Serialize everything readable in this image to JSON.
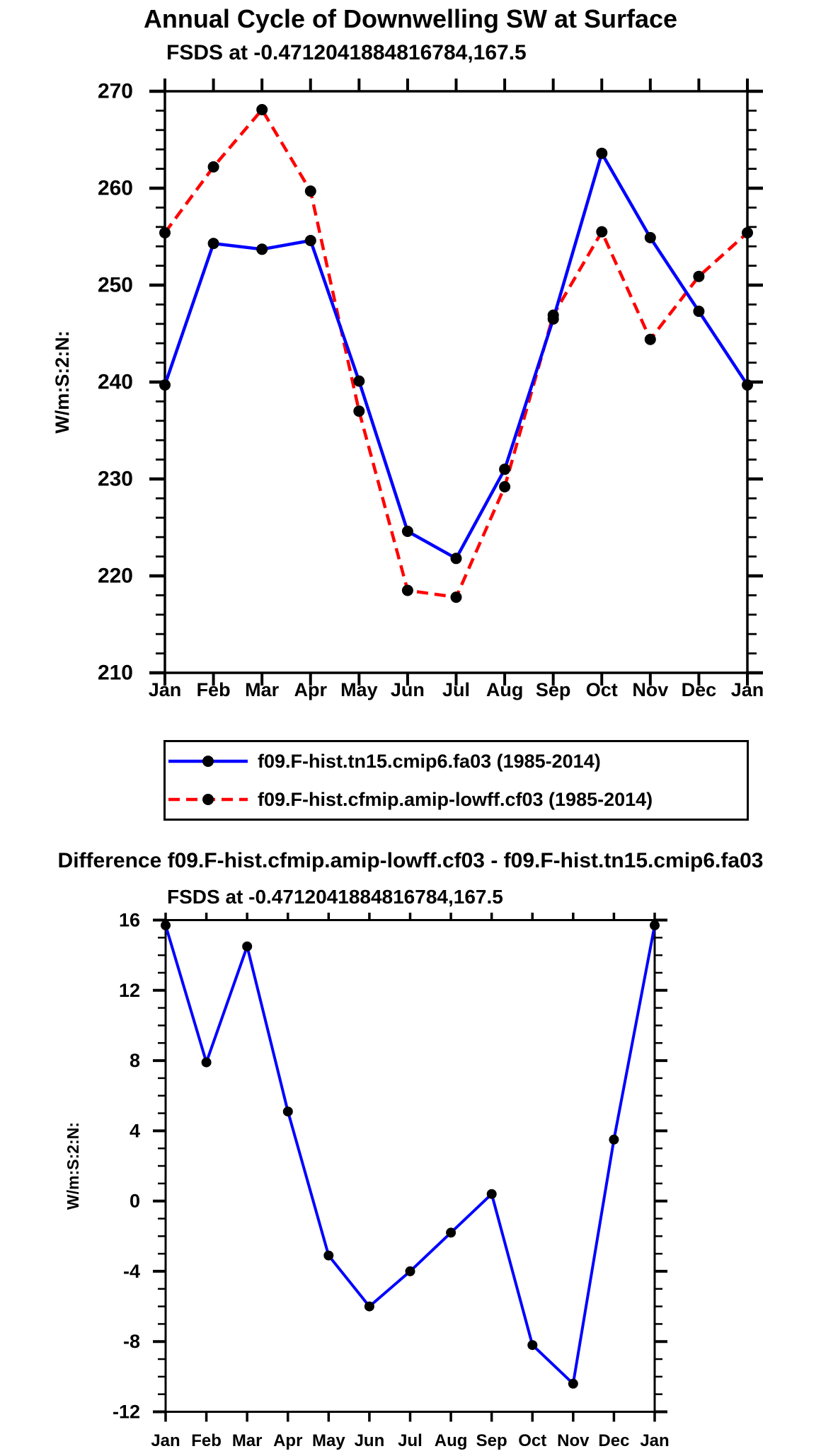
{
  "page": {
    "background": "#ffffff",
    "text_color": "#000000"
  },
  "chart_data": [
    {
      "id": "top",
      "type": "line",
      "title": "Annual Cycle of Downwelling SW at Surface",
      "subtitle": "FSDS at -0.4712041884816784,167.5",
      "ylabel": "W/m:S:2:N:",
      "xlabel": "",
      "categories": [
        "Jan",
        "Feb",
        "Mar",
        "Apr",
        "May",
        "Jun",
        "Jul",
        "Aug",
        "Sep",
        "Oct",
        "Nov",
        "Dec",
        "Jan"
      ],
      "series": [
        {
          "name": "f09.F-hist.tn15.cmip6.fa03 (1985-2014)",
          "color": "#0000ff",
          "line_style": "solid",
          "marker": "circle",
          "marker_color": "#000000",
          "values": [
            239.7,
            254.3,
            253.7,
            254.6,
            240.1,
            224.6,
            221.8,
            231.0,
            246.5,
            263.6,
            254.9,
            247.3,
            239.7
          ]
        },
        {
          "name": "f09.F-hist.cfmip.amip-lowff.cf03 (1985-2014)",
          "color": "#ff0000",
          "line_style": "dashed",
          "marker": "circle",
          "marker_color": "#000000",
          "values": [
            255.4,
            262.2,
            268.1,
            259.7,
            237.0,
            218.5,
            217.8,
            229.2,
            246.9,
            255.5,
            244.4,
            250.9,
            255.4
          ]
        }
      ],
      "ylim": [
        210,
        270
      ],
      "yticks": [
        210,
        220,
        230,
        240,
        250,
        260,
        270
      ],
      "ytick_minor": 2,
      "grid": false,
      "legend_position": "below"
    },
    {
      "id": "diff",
      "type": "line",
      "title": "Difference f09.F-hist.cfmip.amip-lowff.cf03 - f09.F-hist.tn15.cmip6.fa03",
      "subtitle": "FSDS at -0.4712041884816784,167.5",
      "ylabel": "W/m:S:2:N:",
      "xlabel": "",
      "categories": [
        "Jan",
        "Feb",
        "Mar",
        "Apr",
        "May",
        "Jun",
        "Jul",
        "Aug",
        "Sep",
        "Oct",
        "Nov",
        "Dec",
        "Jan"
      ],
      "series": [
        {
          "name": "",
          "color": "#0000ff",
          "line_style": "solid",
          "marker": "circle",
          "marker_color": "#000000",
          "values": [
            15.7,
            7.9,
            14.5,
            5.1,
            -3.1,
            -6.0,
            -4.0,
            -1.8,
            0.4,
            -8.2,
            -10.4,
            3.5,
            15.7
          ]
        }
      ],
      "ylim": [
        -12,
        16
      ],
      "yticks": [
        -12,
        -8,
        -4,
        0,
        4,
        8,
        12,
        16
      ],
      "ytick_minor": 1,
      "grid": false,
      "legend_position": "none"
    }
  ]
}
